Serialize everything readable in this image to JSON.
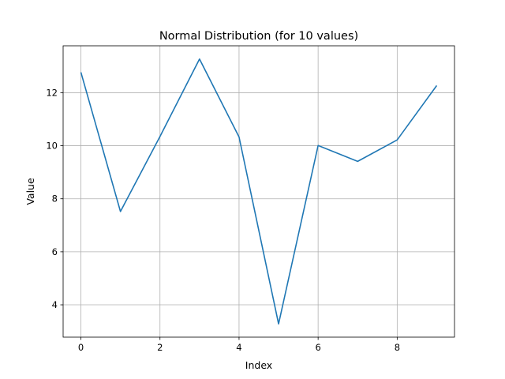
{
  "chart_data": {
    "type": "line",
    "title": "Normal Distribution (for 10 values)",
    "xlabel": "Index",
    "ylabel": "Value",
    "x": [
      0,
      1,
      2,
      3,
      4,
      5,
      6,
      7,
      8,
      9
    ],
    "series": [
      {
        "values": [
          12.77,
          7.52,
          10.35,
          13.27,
          10.33,
          3.28,
          10.01,
          9.41,
          10.22,
          12.27
        ]
      }
    ],
    "xlim": [
      -0.45,
      9.45
    ],
    "ylim": [
      2.78,
      13.77
    ],
    "xticks": [
      0,
      2,
      4,
      6,
      8
    ],
    "yticks": [
      4,
      6,
      8,
      10,
      12
    ],
    "xtick_labels": [
      "0",
      "2",
      "4",
      "6",
      "8"
    ],
    "ytick_labels": [
      "4",
      "6",
      "8",
      "10",
      "12"
    ],
    "grid": true,
    "line_color": "#1f77b4"
  }
}
